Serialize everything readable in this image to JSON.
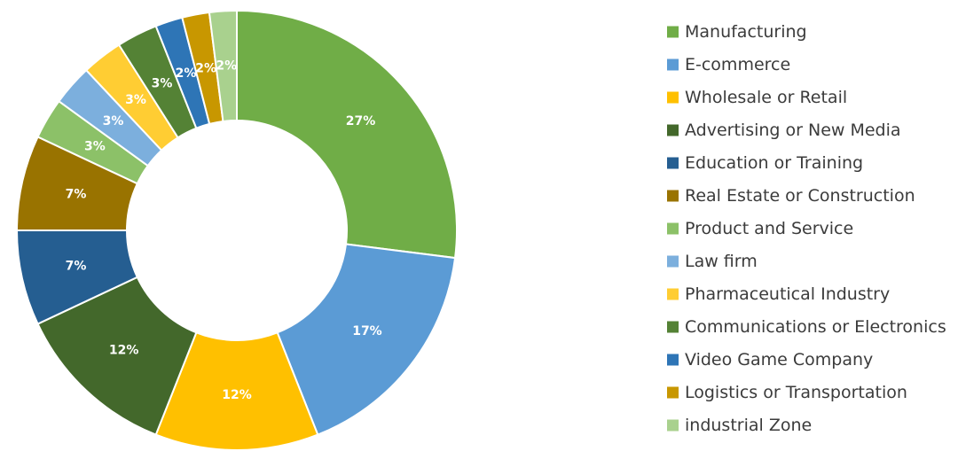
{
  "chart_data": {
    "type": "pie",
    "donut": true,
    "legend_position": "right",
    "categories": [
      "Manufacturing",
      "E-commerce",
      "Wholesale or Retail",
      "Advertising or New Media",
      "Education or Training",
      "Real Estate or Construction",
      "Product and Service",
      "Law firm",
      "Pharmaceutical Industry",
      "Communications or Electronics",
      "Video Game Company",
      "Logistics or Transportation",
      "industrial Zone"
    ],
    "values": [
      27,
      17,
      12,
      12,
      7,
      7,
      3,
      3,
      3,
      3,
      2,
      2,
      2
    ],
    "labels": [
      "27%",
      "17%",
      "12%",
      "12%",
      "7%",
      "7%",
      "3%",
      "3%",
      "3%",
      "3%",
      "2%",
      "2%",
      "2%"
    ],
    "colors": [
      "#70AD47",
      "#5B9BD5",
      "#FFC000",
      "#43682B",
      "#255E91",
      "#997300",
      "#8CC168",
      "#7CAFDD",
      "#FFCD33",
      "#548235",
      "#2E75B6",
      "#C89700",
      "#A9D18E"
    ]
  }
}
